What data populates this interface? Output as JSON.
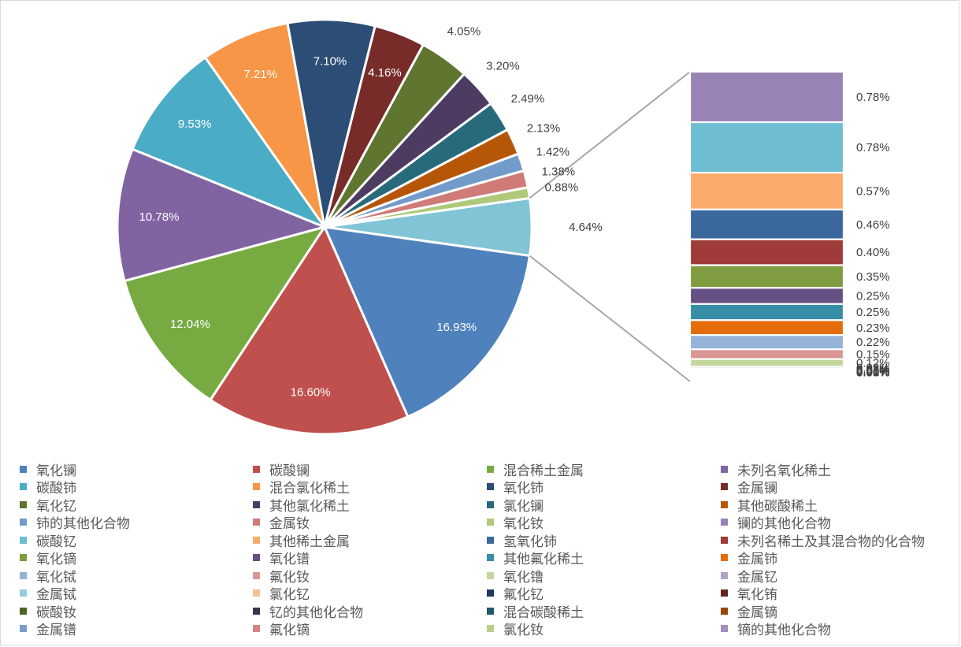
{
  "chart_data": {
    "type": "pie",
    "subtype": "bar-of-pie",
    "title": "",
    "series": [
      {
        "name": "氧化镧",
        "value": 16.93,
        "label": "16.93%",
        "color": "#4F81BD"
      },
      {
        "name": "碳酸镧",
        "value": 16.6,
        "label": "16.60%",
        "color": "#C0504D"
      },
      {
        "name": "混合稀土金属",
        "value": 12.04,
        "label": "12.04%",
        "color": "#77AB42"
      },
      {
        "name": "未列名氧化稀土",
        "value": 10.78,
        "label": "10.78%",
        "color": "#8064A2"
      },
      {
        "name": "碳酸铈",
        "value": 9.53,
        "label": "9.53%",
        "color": "#4BACC6"
      },
      {
        "name": "混合氯化稀土",
        "value": 7.21,
        "label": "7.21%",
        "color": "#F79646"
      },
      {
        "name": "氧化铈",
        "value": 7.1,
        "label": "7.10%",
        "color": "#2C4D75"
      },
      {
        "name": "金属镧",
        "value": 4.16,
        "label": "4.16%",
        "color": "#772C2A"
      },
      {
        "name": "氧化钇",
        "value": 4.05,
        "label": "4.05%",
        "color": "#5F7530"
      },
      {
        "name": "其他氯化稀土",
        "value": 3.2,
        "label": "3.20%",
        "color": "#4D3B62"
      },
      {
        "name": "氯化镧",
        "value": 2.49,
        "label": "2.49%",
        "color": "#276A7C"
      },
      {
        "name": "其他碳酸稀土",
        "value": 2.13,
        "label": "2.13%",
        "color": "#B65708"
      },
      {
        "name": "铈的其他化合物",
        "value": 1.42,
        "label": "1.42%",
        "color": "#729ACA"
      },
      {
        "name": "金属钕",
        "value": 1.38,
        "label": "1.38%",
        "color": "#D07B78"
      },
      {
        "name": "氧化钕",
        "value": 0.88,
        "label": "0.88%",
        "color": "#AFC97A"
      },
      {
        "name": "镧的其他化合物",
        "value": 0.78,
        "label": "0.78%",
        "color": "#9983B5"
      },
      {
        "name": "碳酸钇",
        "value": 0.78,
        "label": "0.78%",
        "color": "#6FBDD1"
      },
      {
        "name": "其他稀土金属",
        "value": 0.57,
        "label": "0.57%",
        "color": "#F9AB6B"
      },
      {
        "name": "氢氧化铈",
        "value": 0.46,
        "label": "0.46%",
        "color": "#3A679C"
      },
      {
        "name": "未列名稀土及其混合物的化合物",
        "value": 0.4,
        "label": "0.40%",
        "color": "#9F3B38"
      },
      {
        "name": "氧化镝",
        "value": 0.35,
        "label": "0.35%",
        "color": "#7F9D40"
      },
      {
        "name": "氧化镨",
        "value": 0.25,
        "label": "0.25%",
        "color": "#664F83"
      },
      {
        "name": "其他氟化稀土",
        "value": 0.25,
        "label": "0.25%",
        "color": "#358EA6"
      },
      {
        "name": "金属铈",
        "value": 0.23,
        "label": "0.23%",
        "color": "#E46C0A"
      },
      {
        "name": "氧化铽",
        "value": 0.22,
        "label": "0.22%",
        "color": "#95B3D7"
      },
      {
        "name": "氟化钕",
        "value": 0.15,
        "label": "0.15%",
        "color": "#D99694"
      },
      {
        "name": "氧化镥",
        "value": 0.12,
        "label": "0.12%",
        "color": "#C3D69B"
      },
      {
        "name": "金属钇",
        "value": 0.03,
        "label": "0.03%",
        "color": "#B3A2C7"
      },
      {
        "name": "金属铽",
        "value": 0.02,
        "label": "0.02%",
        "color": "#93CDDD"
      },
      {
        "name": "氯化钇",
        "value": 0.01,
        "label": "0.01%",
        "color": "#FAC090"
      },
      {
        "name": "氟化钇",
        "value": 0.01,
        "label": "0.01%",
        "color": "#1F3A5F"
      },
      {
        "name": "氧化铕",
        "value": 0.01,
        "label": "0.01%",
        "color": "#632523"
      },
      {
        "name": "碳酸钕",
        "value": 0.0,
        "label": "0.00%",
        "color": "#4F6228"
      },
      {
        "name": "钇的其他化合物",
        "value": 0.0,
        "label": "0.00%",
        "color": "#3F3151"
      },
      {
        "name": "混合碳酸稀土",
        "value": 0.0,
        "label": "0.00%",
        "color": "#215968"
      },
      {
        "name": "金属镝",
        "value": 0.0,
        "label": "0.00%",
        "color": "#984807"
      },
      {
        "name": "金属镨",
        "value": 0.0,
        "label": "0.00%",
        "color": "#7C9CC9"
      },
      {
        "name": "氟化镝",
        "value": 0.0,
        "label": "0.00%",
        "color": "#D58582"
      },
      {
        "name": "氯化钕",
        "value": 0.0,
        "label": "0.00%",
        "color": "#B9CF8B"
      },
      {
        "name": "镝的其他化合物",
        "value": 0.0,
        "label": "0.00%",
        "color": "#A08FBF"
      }
    ],
    "pie_slice_count": 15,
    "legend_position": "bottom",
    "legend_columns": 4
  }
}
